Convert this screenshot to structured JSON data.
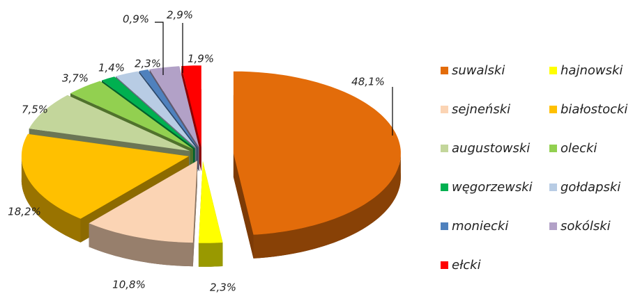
{
  "chart_data": {
    "type": "pie3d",
    "categories": [
      "suwalski",
      "hajnowski",
      "sejneński",
      "białostocki",
      "augustowski",
      "olecki",
      "węgorzewski",
      "gołdapski",
      "moniecki",
      "sokólski",
      "ełcki"
    ],
    "values": [
      48.1,
      2.3,
      10.8,
      18.2,
      7.5,
      3.7,
      1.4,
      2.3,
      0.9,
      2.9,
      1.9
    ],
    "value_labels": [
      "48,1%",
      "2,3%",
      "10,8%",
      "18,2%",
      "7,5%",
      "3,7%",
      "1,4%",
      "2,3%",
      "0,9%",
      "2,9%",
      "1,9%"
    ],
    "colors": [
      "#e36c0a",
      "#ffff00",
      "#fbd4b4",
      "#ffc000",
      "#c3d69b",
      "#92d050",
      "#00b050",
      "#b8cce4",
      "#4f81bd",
      "#b2a1c7",
      "#ff0000"
    ],
    "legend": "right"
  }
}
